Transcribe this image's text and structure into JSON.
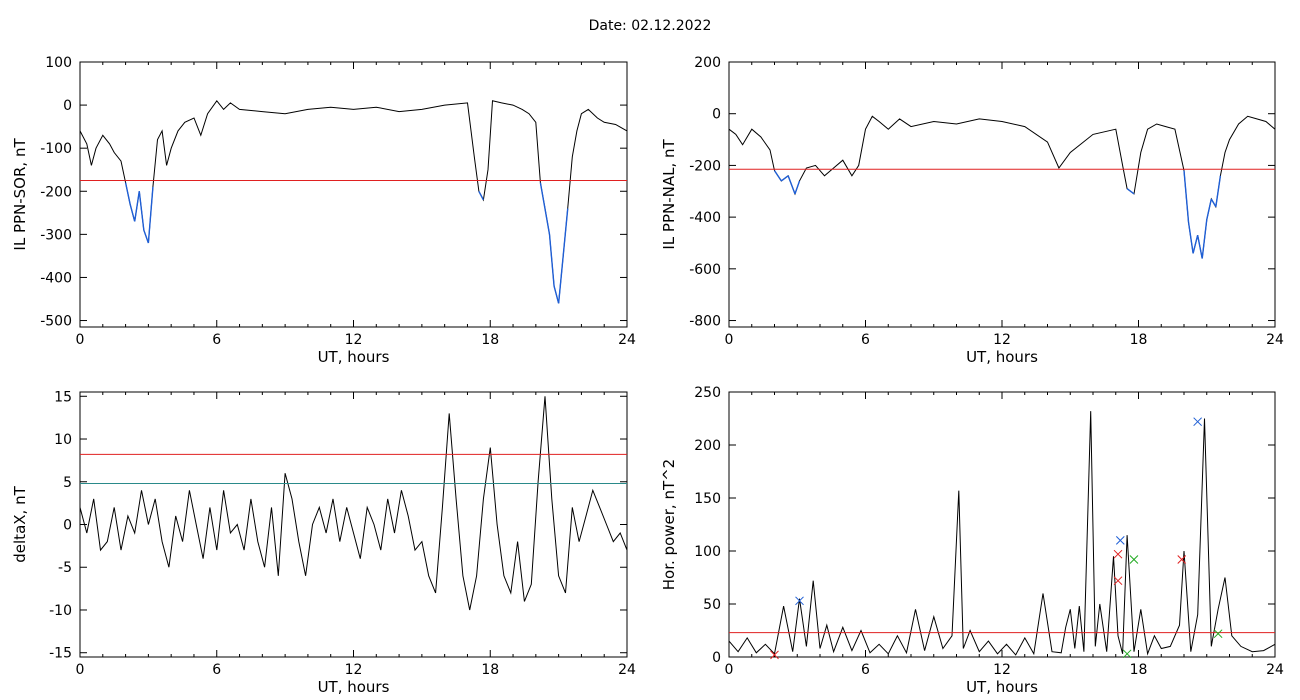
{
  "header": {
    "title": "Date:  02.12.2022"
  },
  "colors": {
    "trace": "#000000",
    "highlight": "#1f5fd6",
    "threshold": "#e02020",
    "threshold2": "#2a8a8a",
    "marker_blue": "#1f5fd6",
    "marker_red": "#e02020",
    "marker_green": "#22aa22"
  },
  "chart_data": [
    {
      "type": "line",
      "ylabel": "IL PPN-SOR, nT",
      "xlabel": "UT, hours",
      "xlim": [
        0,
        24
      ],
      "ylim": [
        -515,
        100
      ],
      "xticks": [
        0,
        6,
        12,
        18,
        24
      ],
      "yticks": [
        100,
        0,
        -100,
        -200,
        -300,
        -400,
        -500
      ],
      "threshold": -175,
      "highlight_below_threshold": true,
      "series": [
        {
          "x": [
            0,
            0.3,
            0.5,
            0.7,
            1.0,
            1.3,
            1.5,
            1.8,
            2.0,
            2.2,
            2.4,
            2.6,
            2.8,
            3.0,
            3.2,
            3.4,
            3.6,
            3.8,
            4.0,
            4.3,
            4.6,
            5.0,
            5.3,
            5.6,
            6.0,
            6.3,
            6.6,
            7.0,
            8,
            9,
            10,
            11,
            12,
            13,
            14,
            15,
            16,
            17.0,
            17.3,
            17.5,
            17.7,
            17.9,
            18.1,
            18.5,
            19.0,
            19.4,
            19.7,
            20.0,
            20.2,
            20.4,
            20.6,
            20.8,
            21.0,
            21.2,
            21.4,
            21.6,
            21.8,
            22.0,
            22.3,
            22.7,
            23.0,
            23.5,
            24
          ],
          "y": [
            -60,
            -90,
            -140,
            -100,
            -70,
            -90,
            -110,
            -130,
            -180,
            -230,
            -270,
            -200,
            -290,
            -320,
            -190,
            -80,
            -60,
            -140,
            -100,
            -60,
            -40,
            -30,
            -70,
            -20,
            10,
            -10,
            5,
            -10,
            -15,
            -20,
            -10,
            -5,
            -10,
            -5,
            -15,
            -10,
            0,
            5,
            -120,
            -200,
            -220,
            -150,
            10,
            5,
            0,
            -10,
            -20,
            -40,
            -180,
            -240,
            -300,
            -420,
            -460,
            -350,
            -240,
            -120,
            -60,
            -20,
            -10,
            -30,
            -40,
            -45,
            -60
          ]
        }
      ]
    },
    {
      "type": "line",
      "ylabel": "IL PPN-NAL, nT",
      "xlabel": "UT, hours",
      "xlim": [
        0,
        24
      ],
      "ylim": [
        -825,
        200
      ],
      "xticks": [
        0,
        6,
        12,
        18,
        24
      ],
      "yticks": [
        200,
        0,
        -200,
        -400,
        -600,
        -800
      ],
      "threshold": -215,
      "highlight_below_threshold": true,
      "series": [
        {
          "x": [
            0,
            0.3,
            0.6,
            1.0,
            1.4,
            1.8,
            2.0,
            2.3,
            2.6,
            2.9,
            3.1,
            3.4,
            3.8,
            4.2,
            4.6,
            5.0,
            5.4,
            5.7,
            6.0,
            6.3,
            6.6,
            7.0,
            7.5,
            8,
            9,
            10,
            11,
            12,
            13,
            14,
            14.5,
            15,
            16,
            17.0,
            17.3,
            17.5,
            17.8,
            18.1,
            18.4,
            18.8,
            19.2,
            19.6,
            20.0,
            20.2,
            20.4,
            20.6,
            20.8,
            21.0,
            21.2,
            21.4,
            21.6,
            21.8,
            22.0,
            22.4,
            22.8,
            23.2,
            23.6,
            24
          ],
          "y": [
            -60,
            -80,
            -120,
            -60,
            -90,
            -140,
            -220,
            -260,
            -240,
            -310,
            -260,
            -210,
            -200,
            -240,
            -210,
            -180,
            -240,
            -200,
            -60,
            -10,
            -30,
            -60,
            -20,
            -50,
            -30,
            -40,
            -20,
            -30,
            -50,
            -110,
            -210,
            -150,
            -80,
            -60,
            -200,
            -290,
            -310,
            -150,
            -60,
            -40,
            -50,
            -60,
            -220,
            -420,
            -540,
            -470,
            -560,
            -410,
            -330,
            -360,
            -240,
            -150,
            -100,
            -40,
            -10,
            -20,
            -30,
            -60
          ]
        }
      ]
    },
    {
      "type": "line",
      "ylabel": "deltaX, nT",
      "xlabel": "UT, hours",
      "xlim": [
        0,
        24
      ],
      "ylim": [
        -15.5,
        15.5
      ],
      "xticks": [
        0,
        6,
        12,
        18,
        24
      ],
      "yticks": [
        15,
        10,
        5,
        0,
        -5,
        -10,
        -15
      ],
      "threshold": 8.2,
      "threshold2": 4.8,
      "series": [
        {
          "x": [
            0,
            0.3,
            0.6,
            0.9,
            1.2,
            1.5,
            1.8,
            2.1,
            2.4,
            2.7,
            3.0,
            3.3,
            3.6,
            3.9,
            4.2,
            4.5,
            4.8,
            5.1,
            5.4,
            5.7,
            6.0,
            6.3,
            6.6,
            6.9,
            7.2,
            7.5,
            7.8,
            8.1,
            8.4,
            8.7,
            9.0,
            9.3,
            9.6,
            9.9,
            10.2,
            10.5,
            10.8,
            11.1,
            11.4,
            11.7,
            12.0,
            12.3,
            12.6,
            12.9,
            13.2,
            13.5,
            13.8,
            14.1,
            14.4,
            14.7,
            15.0,
            15.3,
            15.6,
            15.9,
            16.2,
            16.5,
            16.8,
            17.1,
            17.4,
            17.7,
            18.0,
            18.3,
            18.6,
            18.9,
            19.2,
            19.5,
            19.8,
            20.1,
            20.4,
            20.7,
            21.0,
            21.3,
            21.6,
            21.9,
            22.2,
            22.5,
            22.8,
            23.1,
            23.4,
            23.7,
            24.0
          ],
          "y": [
            2,
            -1,
            3,
            -3,
            -2,
            2,
            -3,
            1,
            -1,
            4,
            0,
            3,
            -2,
            -5,
            1,
            -2,
            4,
            0,
            -4,
            2,
            -3,
            4,
            -1,
            0,
            -3,
            3,
            -2,
            -5,
            2,
            -6,
            6,
            3,
            -2,
            -6,
            0,
            2,
            -1,
            3,
            -2,
            2,
            -1,
            -4,
            2,
            0,
            -3,
            3,
            -1,
            4,
            1,
            -3,
            -2,
            -6,
            -8,
            2,
            13,
            3,
            -6,
            -10,
            -6,
            3,
            9,
            0,
            -6,
            -8,
            -2,
            -9,
            -7,
            5,
            15,
            3,
            -6,
            -8,
            2,
            -2,
            1,
            4,
            2,
            0,
            -2,
            -1,
            -3
          ]
        }
      ]
    },
    {
      "type": "line",
      "ylabel": "Hor. power, nT^2",
      "xlabel": "UT, hours",
      "xlim": [
        0,
        24
      ],
      "ylim": [
        0,
        250
      ],
      "xticks": [
        0,
        6,
        12,
        18,
        24
      ],
      "yticks": [
        250,
        200,
        150,
        100,
        50,
        0
      ],
      "threshold": 23,
      "series": [
        {
          "x": [
            0,
            0.4,
            0.8,
            1.2,
            1.6,
            2.0,
            2.4,
            2.8,
            3.1,
            3.4,
            3.7,
            4.0,
            4.3,
            4.6,
            5.0,
            5.4,
            5.8,
            6.2,
            6.6,
            7.0,
            7.4,
            7.8,
            8.2,
            8.6,
            9.0,
            9.4,
            9.8,
            10.1,
            10.3,
            10.6,
            11.0,
            11.4,
            11.8,
            12.2,
            12.6,
            13.0,
            13.4,
            13.8,
            14.2,
            14.6,
            14.8,
            15.0,
            15.2,
            15.4,
            15.6,
            15.9,
            16.1,
            16.3,
            16.6,
            16.9,
            17.1,
            17.3,
            17.5,
            17.8,
            18.1,
            18.4,
            18.7,
            19.0,
            19.4,
            19.8,
            20.0,
            20.3,
            20.6,
            20.9,
            21.2,
            21.5,
            21.8,
            22.1,
            22.5,
            23.0,
            23.5,
            24.0
          ],
          "y": [
            15,
            5,
            18,
            4,
            12,
            3,
            48,
            5,
            55,
            10,
            72,
            8,
            30,
            5,
            28,
            6,
            25,
            4,
            12,
            3,
            20,
            4,
            45,
            6,
            38,
            8,
            20,
            157,
            8,
            25,
            5,
            15,
            3,
            12,
            2,
            18,
            3,
            60,
            5,
            4,
            28,
            45,
            8,
            48,
            5,
            232,
            10,
            50,
            5,
            95,
            20,
            3,
            115,
            5,
            45,
            3,
            20,
            8,
            10,
            30,
            100,
            5,
            40,
            225,
            10,
            45,
            75,
            20,
            10,
            5,
            6,
            12
          ]
        }
      ],
      "markers": [
        {
          "x": 3.1,
          "y": 53,
          "color": "blue",
          "symbol": "x"
        },
        {
          "x": 17.2,
          "y": 110,
          "color": "blue",
          "symbol": "x"
        },
        {
          "x": 20.6,
          "y": 222,
          "color": "blue",
          "symbol": "x"
        },
        {
          "x": 17.1,
          "y": 97,
          "color": "red",
          "symbol": "x"
        },
        {
          "x": 17.1,
          "y": 72,
          "color": "red",
          "symbol": "x"
        },
        {
          "x": 19.9,
          "y": 92,
          "color": "red",
          "symbol": "x"
        },
        {
          "x": 2.0,
          "y": 2,
          "color": "red",
          "symbol": "x"
        },
        {
          "x": 17.8,
          "y": 92,
          "color": "green",
          "symbol": "x"
        },
        {
          "x": 17.5,
          "y": 3,
          "color": "green",
          "symbol": "x"
        },
        {
          "x": 21.5,
          "y": 22,
          "color": "green",
          "symbol": "x"
        }
      ]
    }
  ]
}
